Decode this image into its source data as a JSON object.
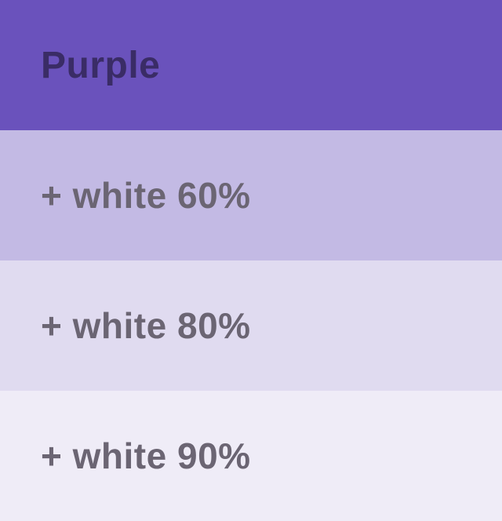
{
  "palette": {
    "name": "Purple",
    "base_color": "#6A52BC",
    "title_text_color": "#3A2C66",
    "label_text_color": "#6B6573",
    "swatches": [
      {
        "label": "Purple",
        "background": "#6A52BC",
        "text_color": "#3A2C66"
      },
      {
        "label": "+ white 60%",
        "background": "#C3BAE4",
        "text_color": "#6B6573"
      },
      {
        "label": "+ white 80%",
        "background": "#E0DBF0",
        "text_color": "#6B6573"
      },
      {
        "label": "+ white 90%",
        "background": "#EFECF7",
        "text_color": "#6B6573"
      }
    ]
  }
}
